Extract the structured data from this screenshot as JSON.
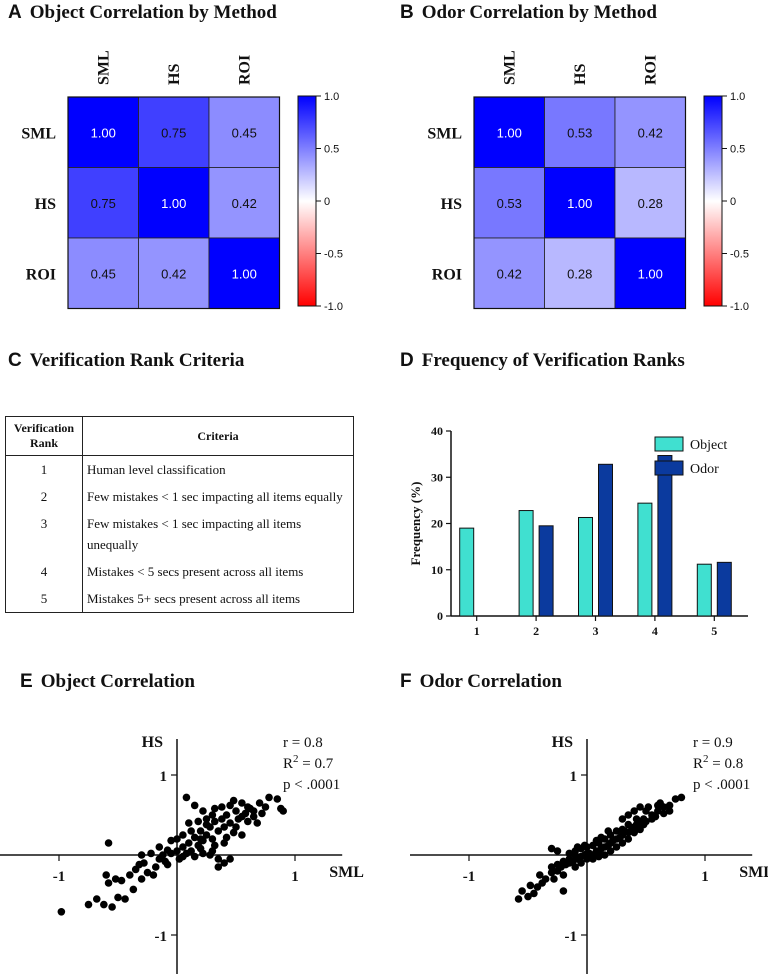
{
  "panels": {
    "A": {
      "letter": "A",
      "title": "Object Correlation by Method"
    },
    "B": {
      "letter": "B",
      "title": "Odor Correlation by Method"
    },
    "C": {
      "letter": "C",
      "title": "Verification Rank Criteria"
    },
    "D": {
      "letter": "D",
      "title": "Frequency of Verification Ranks"
    },
    "E": {
      "letter": "E",
      "title": "Object Correlation"
    },
    "F": {
      "letter": "F",
      "title": "Odor Correlation"
    }
  },
  "rank_table": {
    "headers": [
      "Verification Rank",
      "Criteria"
    ],
    "rows": [
      {
        "rank": "1",
        "criteria": "Human level classification"
      },
      {
        "rank": "2",
        "criteria": "Few mistakes < 1 sec impacting all items equally"
      },
      {
        "rank": "3",
        "criteria": "Few mistakes < 1 sec impacting all items unequally"
      },
      {
        "rank": "4",
        "criteria": "Mistakes < 5 secs present across all items"
      },
      {
        "rank": "5",
        "criteria": "Mistakes 5+ secs present across all items"
      }
    ]
  },
  "colors": {
    "positive": "#0000ff",
    "negative": "#ff0000",
    "neutral": "#ffffff",
    "object_bar": "#40e0d0",
    "odor_bar": "#0b3a9e",
    "points": "#000000"
  },
  "chart_data": [
    {
      "type": "heatmap",
      "id": "A",
      "title": "Object Correlation by Method",
      "labels": [
        "SML",
        "HS",
        "ROI"
      ],
      "values": [
        [
          1.0,
          0.75,
          0.45
        ],
        [
          0.75,
          1.0,
          0.42
        ],
        [
          0.45,
          0.42,
          1.0
        ]
      ],
      "value_labels": [
        [
          "1.00",
          "0.75",
          "0.45"
        ],
        [
          "0.75",
          "1.00",
          "0.42"
        ],
        [
          "0.45",
          "0.42",
          "1.00"
        ]
      ],
      "colorbar_ticks": [
        "1.0",
        "0.5",
        "0",
        "-0.5",
        "-1.0"
      ],
      "range": [
        -1,
        1
      ]
    },
    {
      "type": "heatmap",
      "id": "B",
      "title": "Odor Correlation by Method",
      "labels": [
        "SML",
        "HS",
        "ROI"
      ],
      "values": [
        [
          1.0,
          0.53,
          0.42
        ],
        [
          0.53,
          1.0,
          0.28
        ],
        [
          0.42,
          0.28,
          1.0
        ]
      ],
      "value_labels": [
        [
          "1.00",
          "0.53",
          "0.42"
        ],
        [
          "0.53",
          "1.00",
          "0.28"
        ],
        [
          "0.42",
          "0.28",
          "1.00"
        ]
      ],
      "colorbar_ticks": [
        "1.0",
        "0.5",
        "0",
        "-0.5",
        "-1.0"
      ],
      "range": [
        -1,
        1
      ]
    },
    {
      "type": "bar",
      "id": "D",
      "title": "Frequency of Verification Ranks",
      "categories": [
        "1",
        "2",
        "3",
        "4",
        "5"
      ],
      "series": [
        {
          "name": "Object",
          "values": [
            19,
            22.8,
            21.3,
            24.4,
            11.2
          ]
        },
        {
          "name": "Odor",
          "values": [
            0,
            19.5,
            32.8,
            34.7,
            11.6
          ]
        }
      ],
      "ylabel": "Frequency (%)",
      "ylim": [
        0,
        40
      ],
      "yticks": [
        "0",
        "10",
        "20",
        "30",
        "40"
      ]
    },
    {
      "type": "scatter",
      "id": "E",
      "title": "Object Correlation",
      "xlabel": "SML",
      "ylabel": "HS",
      "xticks": [
        "-1",
        "1"
      ],
      "yticks": [
        "1",
        "-1"
      ],
      "stats": {
        "r": "r = 0.8",
        "r2_prefix": "R",
        "r2_exp": "2",
        "r2_value": " = 0.7",
        "p": "p < .0001"
      },
      "xlim": [
        -1.1,
        1.1
      ],
      "ylim": [
        -1.1,
        1.1
      ],
      "points": [
        [
          -0.98,
          -0.71
        ],
        [
          -0.62,
          -0.62
        ],
        [
          -0.55,
          -0.65
        ],
        [
          -0.68,
          -0.55
        ],
        [
          -0.5,
          -0.53
        ],
        [
          -0.44,
          -0.55
        ],
        [
          -0.37,
          -0.43
        ],
        [
          -0.4,
          -0.25
        ],
        [
          -0.58,
          -0.35
        ],
        [
          -0.52,
          -0.3
        ],
        [
          -0.47,
          -0.32
        ],
        [
          -0.3,
          -0.3
        ],
        [
          -0.25,
          -0.22
        ],
        [
          -0.2,
          -0.25
        ],
        [
          -0.35,
          -0.18
        ],
        [
          -0.28,
          -0.1
        ],
        [
          -0.15,
          -0.05
        ],
        [
          -0.1,
          -0.08
        ],
        [
          -0.18,
          -0.15
        ],
        [
          -0.12,
          0.0
        ],
        [
          -0.05,
          0.02
        ],
        [
          0.0,
          0.05
        ],
        [
          0.02,
          -0.05
        ],
        [
          0.05,
          0.1
        ],
        [
          0.08,
          0.02
        ],
        [
          -0.08,
          0.06
        ],
        [
          -0.22,
          0.02
        ],
        [
          -0.3,
          0.0
        ],
        [
          -0.15,
          0.1
        ],
        [
          0.1,
          0.15
        ],
        [
          0.12,
          0.05
        ],
        [
          0.15,
          0.22
        ],
        [
          0.18,
          0.12
        ],
        [
          0.2,
          0.3
        ],
        [
          0.22,
          0.18
        ],
        [
          0.25,
          0.25
        ],
        [
          0.28,
          0.35
        ],
        [
          0.3,
          0.2
        ],
        [
          0.32,
          0.42
        ],
        [
          0.35,
          0.3
        ],
        [
          0.38,
          0.45
        ],
        [
          0.4,
          0.35
        ],
        [
          0.42,
          0.5
        ],
        [
          0.45,
          0.4
        ],
        [
          0.48,
          0.28
        ],
        [
          0.5,
          0.55
        ],
        [
          0.52,
          0.45
        ],
        [
          0.55,
          0.48
        ],
        [
          0.58,
          0.52
        ],
        [
          0.6,
          0.6
        ],
        [
          0.62,
          0.58
        ],
        [
          0.65,
          0.55
        ],
        [
          0.7,
          0.65
        ],
        [
          0.72,
          0.52
        ],
        [
          0.75,
          0.6
        ],
        [
          0.78,
          0.72
        ],
        [
          0.85,
          0.7
        ],
        [
          0.88,
          0.58
        ],
        [
          0.9,
          0.55
        ],
        [
          0.08,
          0.72
        ],
        [
          0.15,
          0.62
        ],
        [
          0.22,
          0.55
        ],
        [
          0.25,
          0.45
        ],
        [
          0.32,
          0.58
        ],
        [
          0.38,
          0.6
        ],
        [
          0.45,
          0.62
        ],
        [
          0.48,
          0.68
        ],
        [
          0.55,
          0.65
        ],
        [
          0.3,
          0.05
        ],
        [
          0.35,
          -0.05
        ],
        [
          0.4,
          -0.1
        ],
        [
          0.45,
          -0.05
        ],
        [
          0.35,
          -0.15
        ],
        [
          0.28,
          0.0
        ],
        [
          0.15,
          -0.02
        ],
        [
          0.2,
          0.08
        ],
        [
          0.12,
          0.3
        ],
        [
          0.05,
          0.25
        ],
        [
          0.0,
          0.2
        ],
        [
          -0.05,
          0.18
        ],
        [
          0.18,
          0.42
        ],
        [
          0.25,
          0.38
        ],
        [
          0.1,
          0.4
        ],
        [
          0.42,
          0.22
        ],
        [
          0.5,
          0.35
        ],
        [
          0.55,
          0.25
        ],
        [
          -0.58,
          0.15
        ],
        [
          -0.6,
          -0.25
        ],
        [
          -0.75,
          -0.62
        ],
        [
          -0.32,
          -0.12
        ],
        [
          -0.08,
          -0.12
        ],
        [
          0.05,
          -0.02
        ],
        [
          0.22,
          0.02
        ],
        [
          0.32,
          0.12
        ],
        [
          0.4,
          0.15
        ],
        [
          0.6,
          0.42
        ],
        [
          0.65,
          0.48
        ],
        [
          0.68,
          0.4
        ],
        [
          0.3,
          0.5
        ],
        [
          0.2,
          0.2
        ]
      ]
    },
    {
      "type": "scatter",
      "id": "F",
      "title": "Odor Correlation",
      "xlabel": "SML",
      "ylabel": "HS",
      "xticks": [
        "-1",
        "1"
      ],
      "yticks": [
        "1",
        "-1"
      ],
      "stats": {
        "r": "r = 0.9",
        "r2_prefix": "R",
        "r2_exp": "2",
        "r2_value": " = 0.8",
        "p": "p < .0001"
      },
      "xlim": [
        -1.1,
        1.1
      ],
      "ylim": [
        -1.1,
        1.1
      ],
      "points": [
        [
          -0.58,
          -0.55
        ],
        [
          -0.55,
          -0.45
        ],
        [
          -0.5,
          -0.52
        ],
        [
          -0.45,
          -0.48
        ],
        [
          -0.48,
          -0.38
        ],
        [
          -0.42,
          -0.4
        ],
        [
          -0.38,
          -0.35
        ],
        [
          -0.35,
          -0.3
        ],
        [
          -0.4,
          -0.25
        ],
        [
          -0.3,
          -0.22
        ],
        [
          -0.28,
          -0.3
        ],
        [
          -0.25,
          -0.2
        ],
        [
          -0.22,
          -0.15
        ],
        [
          -0.2,
          -0.25
        ],
        [
          -0.18,
          -0.12
        ],
        [
          -0.15,
          -0.1
        ],
        [
          -0.12,
          -0.08
        ],
        [
          -0.1,
          -0.15
        ],
        [
          -0.08,
          -0.05
        ],
        [
          -0.05,
          -0.1
        ],
        [
          -0.02,
          0.0
        ],
        [
          0.0,
          -0.05
        ],
        [
          0.02,
          0.02
        ],
        [
          0.05,
          0.0
        ],
        [
          0.08,
          0.05
        ],
        [
          0.1,
          0.02
        ],
        [
          0.12,
          0.08
        ],
        [
          0.15,
          0.1
        ],
        [
          0.18,
          0.12
        ],
        [
          0.2,
          0.15
        ],
        [
          0.22,
          0.18
        ],
        [
          0.25,
          0.2
        ],
        [
          0.28,
          0.22
        ],
        [
          0.3,
          0.25
        ],
        [
          0.32,
          0.3
        ],
        [
          0.35,
          0.28
        ],
        [
          0.38,
          0.32
        ],
        [
          0.4,
          0.35
        ],
        [
          0.42,
          0.38
        ],
        [
          0.45,
          0.4
        ],
        [
          0.48,
          0.45
        ],
        [
          0.5,
          0.42
        ],
        [
          0.55,
          0.5
        ],
        [
          0.6,
          0.55
        ],
        [
          0.65,
          0.6
        ],
        [
          0.7,
          0.62
        ],
        [
          0.75,
          0.7
        ],
        [
          0.8,
          0.72
        ],
        [
          0.62,
          0.65
        ],
        [
          0.52,
          0.6
        ],
        [
          0.4,
          0.55
        ],
        [
          0.35,
          0.5
        ],
        [
          0.3,
          0.45
        ],
        [
          -0.2,
          -0.45
        ],
        [
          -0.3,
          0.08
        ],
        [
          -0.25,
          0.05
        ],
        [
          -0.15,
          0.02
        ],
        [
          -0.1,
          0.05
        ],
        [
          -0.05,
          0.08
        ],
        [
          0.0,
          0.1
        ],
        [
          0.05,
          0.12
        ],
        [
          0.1,
          0.15
        ],
        [
          0.15,
          0.2
        ],
        [
          0.2,
          0.25
        ],
        [
          0.25,
          0.3
        ],
        [
          0.3,
          0.32
        ],
        [
          0.35,
          0.38
        ],
        [
          0.42,
          0.45
        ],
        [
          0.45,
          0.32
        ],
        [
          0.48,
          0.38
        ],
        [
          0.25,
          0.1
        ],
        [
          0.2,
          0.05
        ],
        [
          0.15,
          0.0
        ],
        [
          0.1,
          -0.02
        ],
        [
          0.05,
          -0.05
        ],
        [
          0.0,
          0.02
        ],
        [
          -0.05,
          -0.02
        ],
        [
          -0.1,
          0.0
        ],
        [
          -0.15,
          -0.05
        ],
        [
          -0.2,
          -0.08
        ],
        [
          -0.25,
          -0.12
        ],
        [
          -0.3,
          -0.15
        ],
        [
          0.4,
          0.28
        ],
        [
          0.55,
          0.45
        ],
        [
          0.58,
          0.48
        ],
        [
          0.65,
          0.52
        ],
        [
          0.7,
          0.55
        ],
        [
          0.35,
          0.2
        ],
        [
          0.3,
          0.15
        ],
        [
          0.08,
          0.18
        ],
        [
          -0.02,
          0.12
        ],
        [
          -0.08,
          0.1
        ],
        [
          0.12,
          0.22
        ],
        [
          0.18,
          0.3
        ],
        [
          0.45,
          0.6
        ],
        [
          0.5,
          0.55
        ],
        [
          0.6,
          0.62
        ]
      ]
    }
  ]
}
